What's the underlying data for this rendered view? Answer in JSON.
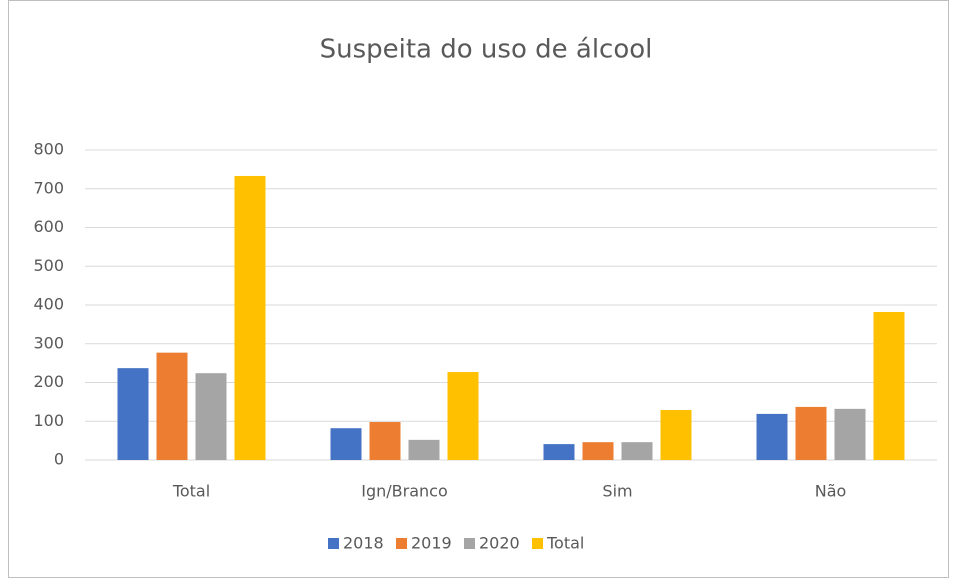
{
  "chart_data": {
    "type": "bar",
    "title": "Suspeita do uso de álcool",
    "categories": [
      "Total",
      "Ign/Branco",
      "Sim",
      "Não"
    ],
    "series": [
      {
        "name": "2018",
        "color": "#4472c4",
        "values": [
          237,
          82,
          41,
          119
        ]
      },
      {
        "name": "2019",
        "color": "#ed7d31",
        "values": [
          277,
          98,
          46,
          137
        ]
      },
      {
        "name": "2020",
        "color": "#a5a5a5",
        "values": [
          224,
          52,
          46,
          132
        ]
      },
      {
        "name": "Total",
        "color": "#ffc000",
        "values": [
          733,
          227,
          129,
          382
        ]
      }
    ],
    "ylim": [
      0,
      800
    ],
    "yticks": [
      0,
      100,
      200,
      300,
      400,
      500,
      600,
      700,
      800
    ],
    "grid": true,
    "legend": "bottom"
  }
}
